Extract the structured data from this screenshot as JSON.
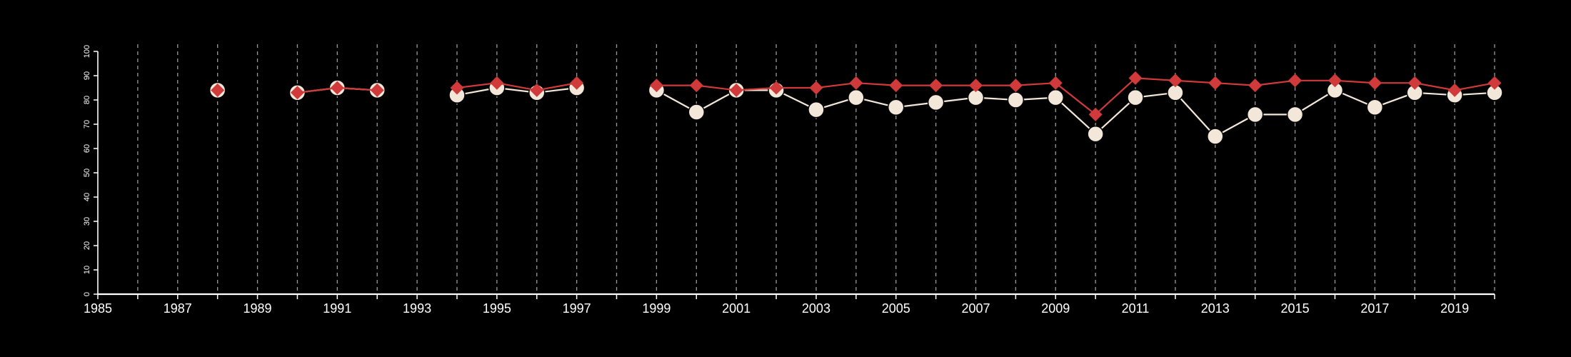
{
  "chart_data": {
    "type": "line",
    "title": "",
    "xlabel": "",
    "ylabel": "",
    "xlim": [
      1985,
      2020
    ],
    "ylim": [
      0,
      100
    ],
    "grid": "vertical dashed lines at each year",
    "colors": {
      "background": "#000000",
      "axis": "#ffffff",
      "grid": "#9a9a9a",
      "series_circle": "#f3e7d9",
      "series_diamond": "#d03a3a"
    },
    "x_ticks": [
      {
        "value": 1985,
        "label": "1985"
      },
      {
        "value": 1987,
        "label": "1987"
      },
      {
        "value": 1989,
        "label": "1989"
      },
      {
        "value": 1991,
        "label": "1991"
      },
      {
        "value": 1993,
        "label": "1993"
      },
      {
        "value": 1995,
        "label": "1995"
      },
      {
        "value": 1997,
        "label": "1997"
      },
      {
        "value": 1999,
        "label": "1999"
      },
      {
        "value": 2001,
        "label": "2001"
      },
      {
        "value": 2003,
        "label": "2003"
      },
      {
        "value": 2005,
        "label": "2005"
      },
      {
        "value": 2007,
        "label": "2007"
      },
      {
        "value": 2009,
        "label": "2009"
      },
      {
        "value": 2011,
        "label": "2011"
      },
      {
        "value": 2013,
        "label": "2013"
      },
      {
        "value": 2015,
        "label": "2015"
      },
      {
        "value": 2017,
        "label": "2017"
      },
      {
        "value": 2019,
        "label": "2019"
      }
    ],
    "y_ticks": [
      {
        "value": 0,
        "label": "0"
      },
      {
        "value": 10,
        "label": "10"
      },
      {
        "value": 20,
        "label": "20"
      },
      {
        "value": 30,
        "label": "30"
      },
      {
        "value": 40,
        "label": "40"
      },
      {
        "value": 50,
        "label": "50"
      },
      {
        "value": 60,
        "label": "60"
      },
      {
        "value": 70,
        "label": "70"
      },
      {
        "value": 80,
        "label": "80"
      },
      {
        "value": 90,
        "label": "90"
      },
      {
        "value": 100,
        "label": "100"
      }
    ],
    "series": [
      {
        "marker": "circle",
        "color": "#f3e7d9",
        "points": [
          [
            1988,
            84
          ],
          [
            1990,
            83
          ],
          [
            1991,
            85
          ],
          [
            1992,
            84
          ],
          [
            1994,
            82
          ],
          [
            1995,
            85
          ],
          [
            1996,
            83
          ],
          [
            1997,
            85
          ],
          [
            1999,
            84
          ],
          [
            2000,
            75
          ],
          [
            2001,
            84
          ],
          [
            2002,
            84
          ],
          [
            2003,
            76
          ],
          [
            2004,
            81
          ],
          [
            2005,
            77
          ],
          [
            2006,
            79
          ],
          [
            2007,
            81
          ],
          [
            2008,
            80
          ],
          [
            2009,
            81
          ],
          [
            2010,
            66
          ],
          [
            2011,
            81
          ],
          [
            2012,
            83
          ],
          [
            2013,
            65
          ],
          [
            2014,
            74
          ],
          [
            2015,
            74
          ],
          [
            2016,
            84
          ],
          [
            2017,
            77
          ],
          [
            2018,
            83
          ],
          [
            2019,
            82
          ],
          [
            2020,
            83
          ]
        ]
      },
      {
        "marker": "diamond",
        "color": "#d03a3a",
        "points": [
          [
            1988,
            84
          ],
          [
            1990,
            83
          ],
          [
            1991,
            85
          ],
          [
            1992,
            84
          ],
          [
            1994,
            85
          ],
          [
            1995,
            87
          ],
          [
            1996,
            84
          ],
          [
            1997,
            87
          ],
          [
            1999,
            86
          ],
          [
            2000,
            86
          ],
          [
            2001,
            84
          ],
          [
            2002,
            85
          ],
          [
            2003,
            85
          ],
          [
            2004,
            87
          ],
          [
            2005,
            86
          ],
          [
            2006,
            86
          ],
          [
            2007,
            86
          ],
          [
            2008,
            86
          ],
          [
            2009,
            87
          ],
          [
            2010,
            74
          ],
          [
            2011,
            89
          ],
          [
            2012,
            88
          ],
          [
            2013,
            87
          ],
          [
            2014,
            86
          ],
          [
            2015,
            88
          ],
          [
            2016,
            88
          ],
          [
            2017,
            87
          ],
          [
            2018,
            87
          ],
          [
            2019,
            84
          ],
          [
            2020,
            87
          ]
        ]
      }
    ]
  }
}
